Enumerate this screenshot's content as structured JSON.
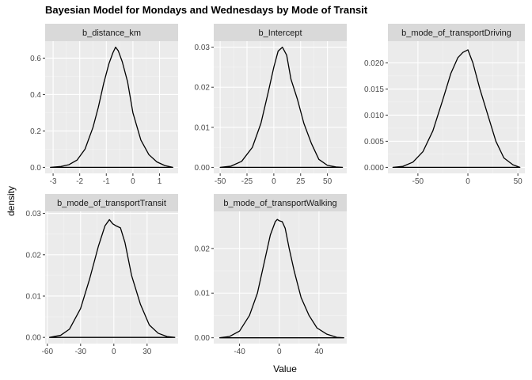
{
  "title": "Bayesian Model for Mondays and Wednesdays by Mode of Transit",
  "colors": {
    "panel_bg": "#ebebeb",
    "strip_bg": "#d9d9d9",
    "grid_major": "#ffffff",
    "line": "#000000"
  },
  "chart_data": {
    "type": "area",
    "title": "Bayesian Model for Mondays and Wednesdays by Mode of Transit",
    "xlabel": "Value",
    "ylabel": "density",
    "grid": true,
    "facets": [
      {
        "name": "b_distance_km",
        "xlim": [
          -3.3,
          1.7
        ],
        "ylim": [
          -0.033,
          0.693
        ],
        "xticks": [
          -3,
          -2,
          -1,
          0,
          1
        ],
        "xticklabels": [
          "-3",
          "-2",
          "-1",
          "0",
          "1"
        ],
        "yticks": [
          0.0,
          0.2,
          0.4,
          0.6
        ],
        "yticklabels": [
          "0.0",
          "0.2",
          "0.4",
          "0.6"
        ],
        "x": [
          -3.1,
          -2.7,
          -2.4,
          -2.1,
          -1.8,
          -1.5,
          -1.3,
          -1.1,
          -0.9,
          -0.75,
          -0.65,
          -0.55,
          -0.4,
          -0.2,
          0.0,
          0.3,
          0.6,
          0.9,
          1.2,
          1.5
        ],
        "y": [
          0.0,
          0.005,
          0.015,
          0.04,
          0.1,
          0.22,
          0.33,
          0.46,
          0.57,
          0.63,
          0.66,
          0.64,
          0.58,
          0.47,
          0.3,
          0.15,
          0.07,
          0.03,
          0.01,
          0.0
        ]
      },
      {
        "name": "b_Intercept",
        "xlim": [
          -56,
          68
        ],
        "ylim": [
          -0.0015,
          0.0315
        ],
        "xticks": [
          -50,
          -25,
          0,
          25,
          50
        ],
        "xticklabels": [
          "-50",
          "-25",
          "0",
          "25",
          "50"
        ],
        "yticks": [
          0.0,
          0.01,
          0.02,
          0.03
        ],
        "yticklabels": [
          "0.00",
          "0.01",
          "0.02",
          "0.03"
        ],
        "x": [
          -50,
          -40,
          -30,
          -20,
          -12,
          -5,
          0,
          4,
          8,
          12,
          16,
          22,
          28,
          35,
          42,
          50,
          58,
          64
        ],
        "y": [
          0.0,
          0.0003,
          0.0015,
          0.005,
          0.011,
          0.019,
          0.025,
          0.029,
          0.03,
          0.028,
          0.022,
          0.017,
          0.011,
          0.006,
          0.002,
          0.0005,
          0.0001,
          0.0
        ]
      },
      {
        "name": "b_mode_of_transportDriving",
        "xlim": [
          -80,
          57
        ],
        "ylim": [
          -0.00115,
          0.02415
        ],
        "xticks": [
          -50,
          0,
          50
        ],
        "xticklabels": [
          "-50",
          "0",
          "50"
        ],
        "yticks": [
          0.0,
          0.005,
          0.01,
          0.015,
          0.02
        ],
        "yticklabels": [
          "0.000",
          "0.005",
          "0.010",
          "0.015",
          "0.020"
        ],
        "x": [
          -75,
          -65,
          -55,
          -45,
          -35,
          -25,
          -17,
          -10,
          -5,
          0,
          5,
          12,
          20,
          28,
          36,
          45,
          52
        ],
        "y": [
          0.0,
          0.0002,
          0.001,
          0.003,
          0.007,
          0.013,
          0.018,
          0.021,
          0.022,
          0.0225,
          0.02,
          0.015,
          0.01,
          0.005,
          0.0018,
          0.0005,
          0.0
        ]
      },
      {
        "name": "b_mode_of_transportTransit",
        "xlim": [
          -62,
          58
        ],
        "ylim": [
          -0.0015,
          0.0305
        ],
        "xticks": [
          -60,
          -30,
          0,
          30
        ],
        "xticklabels": [
          "-60",
          "-30",
          "0",
          "30"
        ],
        "yticks": [
          0.0,
          0.01,
          0.02,
          0.03
        ],
        "yticklabels": [
          "0.00",
          "0.01",
          "0.02",
          "0.03"
        ],
        "x": [
          -58,
          -48,
          -40,
          -30,
          -22,
          -14,
          -8,
          -4,
          -1,
          2,
          6,
          10,
          16,
          24,
          32,
          40,
          48,
          55
        ],
        "y": [
          0.0,
          0.0005,
          0.002,
          0.007,
          0.014,
          0.022,
          0.027,
          0.0285,
          0.0275,
          0.027,
          0.0265,
          0.023,
          0.015,
          0.008,
          0.003,
          0.001,
          0.0002,
          0.0
        ]
      },
      {
        "name": "b_mode_of_transportWalking",
        "xlim": [
          -66,
          68
        ],
        "ylim": [
          -0.0013,
          0.0283
        ],
        "xticks": [
          -40,
          0,
          40
        ],
        "xticklabels": [
          "-40",
          "0",
          "40"
        ],
        "yticks": [
          0.0,
          0.01,
          0.02
        ],
        "yticklabels": [
          "0.00",
          "0.01",
          "0.02"
        ],
        "x": [
          -60,
          -50,
          -40,
          -30,
          -22,
          -15,
          -9,
          -4,
          -2,
          0,
          3,
          6,
          10,
          15,
          22,
          30,
          38,
          48,
          58,
          65
        ],
        "y": [
          0.0,
          0.0003,
          0.0015,
          0.005,
          0.01,
          0.017,
          0.023,
          0.026,
          0.0265,
          0.0262,
          0.026,
          0.0245,
          0.02,
          0.015,
          0.009,
          0.005,
          0.0022,
          0.0008,
          0.0001,
          0.0
        ]
      }
    ]
  }
}
